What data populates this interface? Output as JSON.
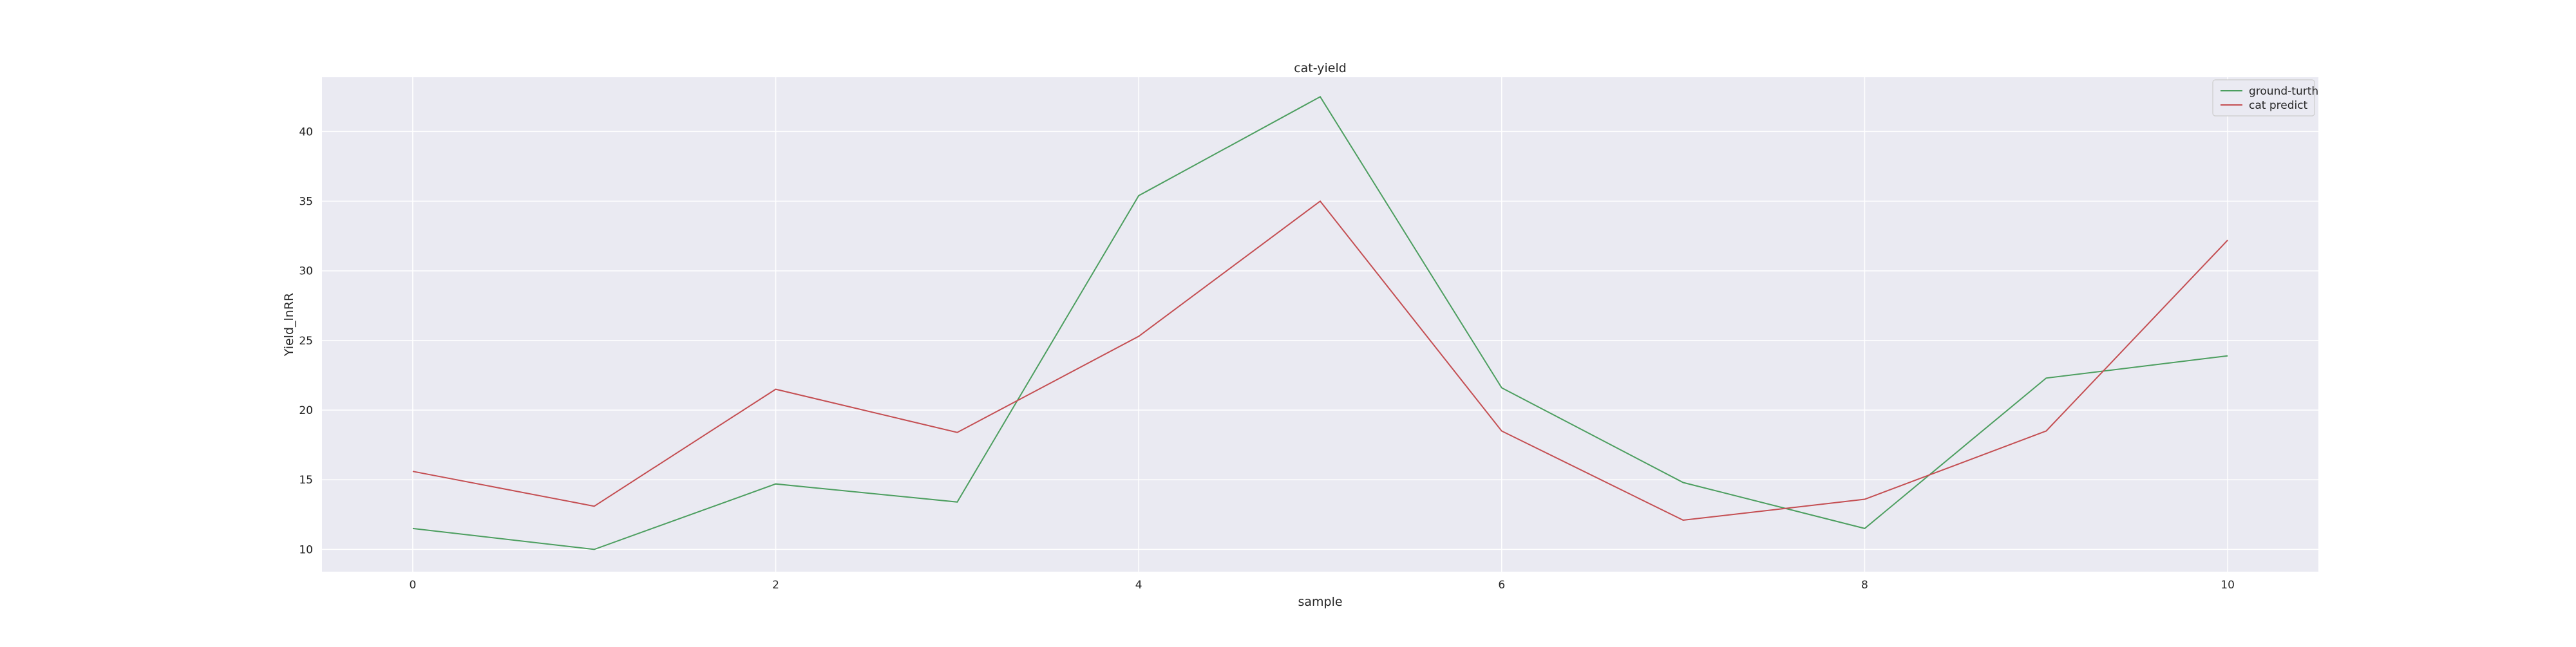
{
  "chart_data": {
    "type": "line",
    "title": "cat-yield",
    "xlabel": "sample",
    "ylabel": "Yield_lnRR",
    "x": [
      0,
      1,
      2,
      3,
      4,
      5,
      6,
      7,
      8,
      9,
      10
    ],
    "xticks": [
      0,
      2,
      4,
      6,
      8,
      10
    ],
    "yticks": [
      10,
      15,
      20,
      25,
      30,
      35,
      40
    ],
    "xlim": [
      -0.5,
      10.5
    ],
    "ylim": [
      8.4,
      43.9
    ],
    "grid": true,
    "legend_position": "top-right",
    "series": [
      {
        "name": "ground-turth",
        "color": "#4c9e5f",
        "values": [
          11.5,
          10.0,
          14.7,
          13.4,
          35.4,
          42.5,
          21.6,
          14.8,
          11.5,
          22.3,
          23.9
        ]
      },
      {
        "name": "cat predict",
        "color": "#c44e52",
        "values": [
          15.6,
          13.1,
          21.5,
          18.4,
          25.3,
          35.0,
          18.5,
          12.1,
          13.6,
          18.5,
          32.2
        ]
      }
    ]
  }
}
